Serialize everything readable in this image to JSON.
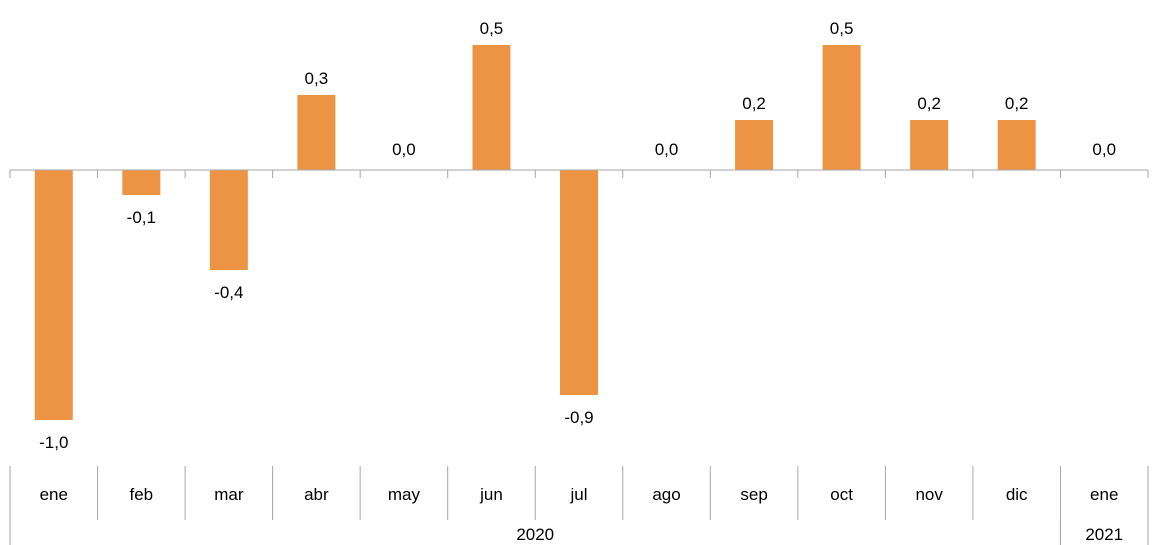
{
  "chart_data": {
    "type": "bar",
    "title": "",
    "xlabel": "",
    "ylabel": "",
    "categories": [
      "ene",
      "feb",
      "mar",
      "abr",
      "may",
      "jun",
      "jul",
      "ago",
      "sep",
      "oct",
      "nov",
      "dic",
      "ene"
    ],
    "values": [
      -1.0,
      -0.1,
      -0.4,
      0.3,
      0.0,
      0.5,
      -0.9,
      0.0,
      0.2,
      0.5,
      0.2,
      0.2,
      0.0
    ],
    "data_labels": [
      "-1,0",
      "-0,1",
      "-0,4",
      "0,3",
      "0,0",
      "0,5",
      "-0,9",
      "0,0",
      "0,2",
      "0,5",
      "0,2",
      "0,2",
      "0,0"
    ],
    "year_groups": [
      {
        "label": "2020",
        "count": 12
      },
      {
        "label": "2021",
        "count": 1
      }
    ],
    "ylim": [
      -1.0,
      0.5
    ],
    "grid": false,
    "legend": "none",
    "colors": {
      "bar": "#ED9444",
      "axis": "#a6a6a6"
    }
  }
}
